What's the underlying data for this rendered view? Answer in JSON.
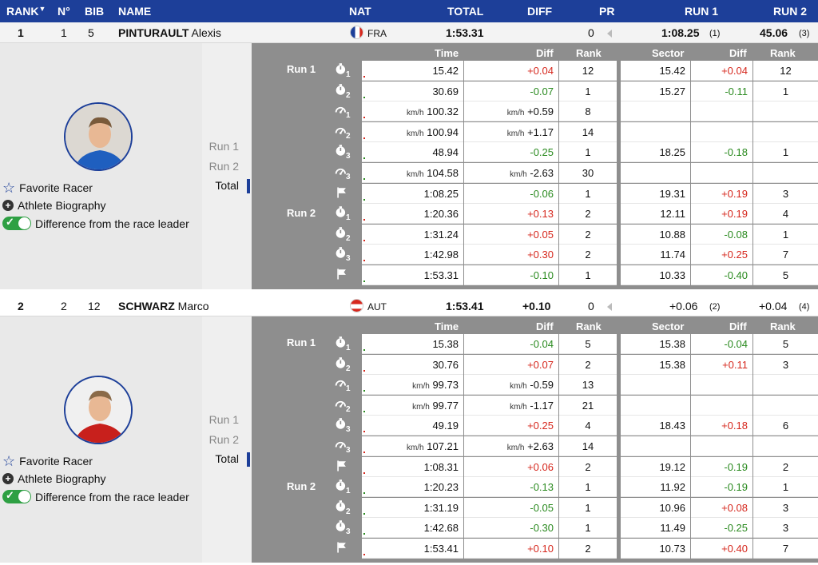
{
  "header": {
    "rank": "RANK",
    "no": "N°",
    "bib": "BIB",
    "name": "NAME",
    "nat": "NAT",
    "total": "TOTAL",
    "diff": "DIFF",
    "pr": "PR",
    "run1": "RUN 1",
    "run2": "RUN 2"
  },
  "racers": [
    {
      "rank": "1",
      "no": "1",
      "bib": "5",
      "last": "PINTURAULT",
      "first": "Alexis",
      "nat": "FRA",
      "total": "1:53.31",
      "diff": "",
      "pr": "0",
      "run1": "1:08.25",
      "run1_rank": "(1)",
      "run2": "45.06",
      "run2_rank": "(3)",
      "options": {
        "favorite": "Favorite Racer",
        "bio": "Athlete Biography",
        "diffleader": "Difference from the race leader"
      },
      "run_selector": [
        "Run 1",
        "Run 2",
        "Total"
      ],
      "cols": {
        "time": "Time",
        "diff": "Diff",
        "rank": "Rank",
        "sector": "Sector",
        "sdiff": "Diff",
        "srank": "Rank"
      },
      "run_labels": [
        "Run 1",
        "Run 2"
      ],
      "splits": [
        {
          "icon": "stopwatch-icon",
          "idx": "1",
          "unit": "",
          "time": "15.42",
          "dunit": "",
          "diff": "+0.04",
          "rank": "12",
          "sector": "15.42",
          "sdiff": "+0.04",
          "srank": "12"
        },
        {
          "icon": "stopwatch-icon",
          "idx": "2",
          "unit": "",
          "time": "30.69",
          "dunit": "",
          "diff": "-0.07",
          "rank": "1",
          "sector": "15.27",
          "sdiff": "-0.11",
          "srank": "1"
        },
        {
          "icon": "speedometer-icon",
          "idx": "1",
          "unit": "km/h",
          "time": "100.32",
          "dunit": "km/h",
          "diff": "+0.59",
          "rank": "8",
          "sector": "",
          "sdiff": "",
          "srank": ""
        },
        {
          "icon": "speedometer-icon",
          "idx": "2",
          "unit": "km/h",
          "time": "100.94",
          "dunit": "km/h",
          "diff": "+1.17",
          "rank": "14",
          "sector": "",
          "sdiff": "",
          "srank": ""
        },
        {
          "icon": "stopwatch-icon",
          "idx": "3",
          "unit": "",
          "time": "48.94",
          "dunit": "",
          "diff": "-0.25",
          "rank": "1",
          "sector": "18.25",
          "sdiff": "-0.18",
          "srank": "1"
        },
        {
          "icon": "speedometer-icon",
          "idx": "3",
          "unit": "km/h",
          "time": "104.58",
          "dunit": "km/h",
          "diff": "-2.63",
          "rank": "30",
          "sector": "",
          "sdiff": "",
          "srank": ""
        },
        {
          "icon": "finish-flag-icon",
          "idx": "",
          "unit": "",
          "time": "1:08.25",
          "dunit": "",
          "diff": "-0.06",
          "rank": "1",
          "sector": "19.31",
          "sdiff": "+0.19",
          "srank": "3"
        },
        {
          "icon": "stopwatch-icon",
          "idx": "1",
          "unit": "",
          "time": "1:20.36",
          "dunit": "",
          "diff": "+0.13",
          "rank": "2",
          "sector": "12.11",
          "sdiff": "+0.19",
          "srank": "4"
        },
        {
          "icon": "stopwatch-icon",
          "idx": "2",
          "unit": "",
          "time": "1:31.24",
          "dunit": "",
          "diff": "+0.05",
          "rank": "2",
          "sector": "10.88",
          "sdiff": "-0.08",
          "srank": "1"
        },
        {
          "icon": "stopwatch-icon",
          "idx": "3",
          "unit": "",
          "time": "1:42.98",
          "dunit": "",
          "diff": "+0.30",
          "rank": "2",
          "sector": "11.74",
          "sdiff": "+0.25",
          "srank": "7"
        },
        {
          "icon": "finish-flag-icon",
          "idx": "",
          "unit": "",
          "time": "1:53.31",
          "dunit": "",
          "diff": "-0.10",
          "rank": "1",
          "sector": "10.33",
          "sdiff": "-0.40",
          "srank": "5"
        }
      ]
    },
    {
      "rank": "2",
      "no": "2",
      "bib": "12",
      "last": "SCHWARZ",
      "first": "Marco",
      "nat": "AUT",
      "total": "1:53.41",
      "diff": "+0.10",
      "pr": "0",
      "run1": "+0.06",
      "run1_rank": "(2)",
      "run2": "+0.04",
      "run2_rank": "(4)",
      "options": {
        "favorite": "Favorite Racer",
        "bio": "Athlete Biography",
        "diffleader": "Difference from the race leader"
      },
      "run_selector": [
        "Run 1",
        "Run 2",
        "Total"
      ],
      "cols": {
        "time": "Time",
        "diff": "Diff",
        "rank": "Rank",
        "sector": "Sector",
        "sdiff": "Diff",
        "srank": "Rank"
      },
      "run_labels": [
        "Run 1",
        "Run 2"
      ],
      "splits": [
        {
          "icon": "stopwatch-icon",
          "idx": "1",
          "unit": "",
          "time": "15.38",
          "dunit": "",
          "diff": "-0.04",
          "rank": "5",
          "sector": "15.38",
          "sdiff": "-0.04",
          "srank": "5"
        },
        {
          "icon": "stopwatch-icon",
          "idx": "2",
          "unit": "",
          "time": "30.76",
          "dunit": "",
          "diff": "+0.07",
          "rank": "2",
          "sector": "15.38",
          "sdiff": "+0.11",
          "srank": "3"
        },
        {
          "icon": "speedometer-icon",
          "idx": "1",
          "unit": "km/h",
          "time": "99.73",
          "dunit": "km/h",
          "diff": "-0.59",
          "rank": "13",
          "sector": "",
          "sdiff": "",
          "srank": ""
        },
        {
          "icon": "speedometer-icon",
          "idx": "2",
          "unit": "km/h",
          "time": "99.77",
          "dunit": "km/h",
          "diff": "-1.17",
          "rank": "21",
          "sector": "",
          "sdiff": "",
          "srank": ""
        },
        {
          "icon": "stopwatch-icon",
          "idx": "3",
          "unit": "",
          "time": "49.19",
          "dunit": "",
          "diff": "+0.25",
          "rank": "4",
          "sector": "18.43",
          "sdiff": "+0.18",
          "srank": "6"
        },
        {
          "icon": "speedometer-icon",
          "idx": "3",
          "unit": "km/h",
          "time": "107.21",
          "dunit": "km/h",
          "diff": "+2.63",
          "rank": "14",
          "sector": "",
          "sdiff": "",
          "srank": ""
        },
        {
          "icon": "finish-flag-icon",
          "idx": "",
          "unit": "",
          "time": "1:08.31",
          "dunit": "",
          "diff": "+0.06",
          "rank": "2",
          "sector": "19.12",
          "sdiff": "-0.19",
          "srank": "2"
        },
        {
          "icon": "stopwatch-icon",
          "idx": "1",
          "unit": "",
          "time": "1:20.23",
          "dunit": "",
          "diff": "-0.13",
          "rank": "1",
          "sector": "11.92",
          "sdiff": "-0.19",
          "srank": "1"
        },
        {
          "icon": "stopwatch-icon",
          "idx": "2",
          "unit": "",
          "time": "1:31.19",
          "dunit": "",
          "diff": "-0.05",
          "rank": "1",
          "sector": "10.96",
          "sdiff": "+0.08",
          "srank": "3"
        },
        {
          "icon": "stopwatch-icon",
          "idx": "3",
          "unit": "",
          "time": "1:42.68",
          "dunit": "",
          "diff": "-0.30",
          "rank": "1",
          "sector": "11.49",
          "sdiff": "-0.25",
          "srank": "3"
        },
        {
          "icon": "finish-flag-icon",
          "idx": "",
          "unit": "",
          "time": "1:53.41",
          "dunit": "",
          "diff": "+0.10",
          "rank": "2",
          "sector": "10.73",
          "sdiff": "+0.40",
          "srank": "7"
        }
      ]
    }
  ],
  "colors": {
    "header_bg": "#1d3f99",
    "positive": "#d6281e",
    "negative": "#2a8a1f",
    "toggle": "#2ea043"
  }
}
